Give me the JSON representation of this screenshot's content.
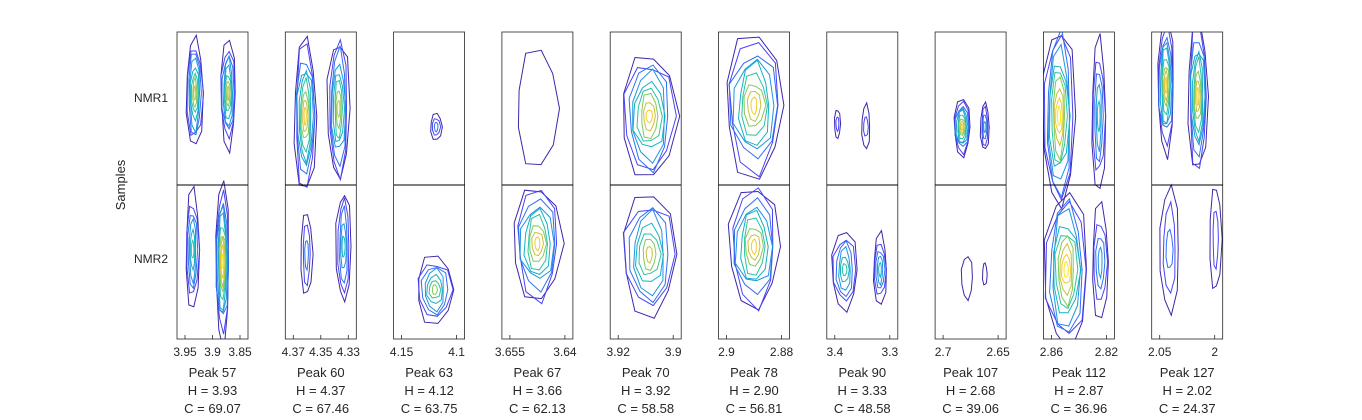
{
  "figure": {
    "ylabel": "Samples",
    "row_labels": [
      "NMR1",
      "NMR2"
    ],
    "colors": {
      "axis": "#262626",
      "contour_levels": [
        "#3e26a8",
        "#4743f8",
        "#2f6ff3",
        "#1f94e0",
        "#11b1c7",
        "#2cc29f",
        "#80c95c",
        "#c7c03a",
        "#f1cb2e",
        "#f9e91b"
      ]
    }
  },
  "chart_data": [
    {
      "type": "contour",
      "peak_label": "Peak 57",
      "h_label": "H = 3.93",
      "c_label": "C = 69.07",
      "xticks": [
        "3.95",
        "3.9",
        "3.85"
      ],
      "rows": [
        {
          "sample": "NMR1",
          "blobs": [
            [
              0.25,
              0.4,
              0.12,
              0.36,
              0.75
            ],
            [
              0.72,
              0.4,
              0.11,
              0.34,
              0.75
            ]
          ]
        },
        {
          "sample": "NMR2",
          "blobs": [
            [
              0.22,
              0.42,
              0.1,
              0.38,
              0.55
            ],
            [
              0.64,
              0.5,
              0.1,
              0.5,
              1.0
            ]
          ]
        }
      ]
    },
    {
      "type": "contour",
      "peak_label": "Peak 60",
      "h_label": "H = 4.37",
      "c_label": "C = 67.46",
      "xticks": [
        "4.37",
        "4.35",
        "4.33"
      ],
      "rows": [
        {
          "sample": "NMR1",
          "blobs": [
            [
              0.28,
              0.55,
              0.16,
              0.5,
              0.85
            ],
            [
              0.75,
              0.5,
              0.15,
              0.48,
              0.75
            ]
          ]
        },
        {
          "sample": "NMR2",
          "blobs": [
            [
              0.3,
              0.45,
              0.08,
              0.28,
              0.3
            ],
            [
              0.82,
              0.4,
              0.1,
              0.38,
              0.5
            ]
          ]
        }
      ]
    },
    {
      "type": "contour",
      "peak_label": "Peak 63",
      "h_label": "H = 4.12",
      "c_label": "C = 63.75",
      "xticks": [
        "4.15",
        "4.1"
      ],
      "rows": [
        {
          "sample": "NMR1",
          "blobs": [
            [
              0.6,
              0.62,
              0.08,
              0.09,
              0.25
            ]
          ]
        },
        {
          "sample": "NMR2",
          "blobs": [
            [
              0.58,
              0.68,
              0.26,
              0.22,
              0.72
            ]
          ]
        }
      ]
    },
    {
      "type": "contour",
      "peak_label": "Peak 67",
      "h_label": "H = 3.66",
      "c_label": "C = 62.13",
      "xticks": [
        "3.655",
        "3.64"
      ],
      "rows": [
        {
          "sample": "NMR1",
          "blobs": [
            [
              0.5,
              0.5,
              0.3,
              0.38,
              0.1
            ]
          ]
        },
        {
          "sample": "NMR2",
          "blobs": [
            [
              0.5,
              0.38,
              0.34,
              0.38,
              0.85
            ]
          ]
        }
      ]
    },
    {
      "type": "contour",
      "peak_label": "Peak 70",
      "h_label": "H = 3.92",
      "c_label": "C = 58.58",
      "xticks": [
        "3.92",
        "3.9"
      ],
      "rows": [
        {
          "sample": "NMR1",
          "blobs": [
            [
              0.55,
              0.55,
              0.38,
              0.42,
              0.85
            ]
          ]
        },
        {
          "sample": "NMR2",
          "blobs": [
            [
              0.55,
              0.45,
              0.38,
              0.4,
              0.8
            ]
          ]
        }
      ]
    },
    {
      "type": "contour",
      "peak_label": "Peak 78",
      "h_label": "H = 2.90",
      "c_label": "C = 56.81",
      "xticks": [
        "2.9",
        "2.88"
      ],
      "rows": [
        {
          "sample": "NMR1",
          "blobs": [
            [
              0.5,
              0.48,
              0.42,
              0.46,
              0.9
            ]
          ]
        },
        {
          "sample": "NMR2",
          "blobs": [
            [
              0.5,
              0.4,
              0.36,
              0.4,
              0.9
            ]
          ]
        }
      ]
    },
    {
      "type": "contour",
      "peak_label": "Peak 90",
      "h_label": "H = 3.33",
      "c_label": "C = 48.58",
      "xticks": [
        "3.4",
        "3.3"
      ],
      "rows": [
        {
          "sample": "NMR1",
          "blobs": [
            [
              0.15,
              0.6,
              0.04,
              0.1,
              0.15
            ],
            [
              0.55,
              0.62,
              0.06,
              0.14,
              0.15
            ]
          ]
        },
        {
          "sample": "NMR2",
          "blobs": [
            [
              0.25,
              0.55,
              0.18,
              0.26,
              0.6
            ],
            [
              0.75,
              0.55,
              0.1,
              0.22,
              0.5
            ]
          ]
        }
      ]
    },
    {
      "type": "contour",
      "peak_label": "Peak 107",
      "h_label": "H = 2.68",
      "c_label": "C = 39.06",
      "xticks": [
        "2.7",
        "2.65"
      ],
      "rows": [
        {
          "sample": "NMR1",
          "blobs": [
            [
              0.38,
              0.62,
              0.12,
              0.18,
              0.85
            ],
            [
              0.7,
              0.62,
              0.06,
              0.16,
              0.4
            ]
          ]
        },
        {
          "sample": "NMR2",
          "blobs": [
            [
              0.45,
              0.6,
              0.08,
              0.14,
              0.12
            ],
            [
              0.7,
              0.58,
              0.03,
              0.08,
              0.1
            ]
          ]
        }
      ]
    },
    {
      "type": "contour",
      "peak_label": "Peak 112",
      "h_label": "H = 2.87",
      "c_label": "C = 36.96",
      "xticks": [
        "2.86",
        "2.82"
      ],
      "rows": [
        {
          "sample": "NMR1",
          "blobs": [
            [
              0.22,
              0.55,
              0.22,
              0.62,
              1.0
            ],
            [
              0.78,
              0.55,
              0.1,
              0.5,
              0.5
            ]
          ]
        },
        {
          "sample": "NMR2",
          "blobs": [
            [
              0.32,
              0.55,
              0.3,
              0.52,
              0.95
            ],
            [
              0.8,
              0.5,
              0.12,
              0.36,
              0.4
            ]
          ]
        }
      ]
    },
    {
      "type": "contour",
      "peak_label": "Peak 127",
      "h_label": "H = 2.02",
      "c_label": "C = 24.37",
      "xticks": [
        "2.05",
        "2"
      ],
      "rows": [
        {
          "sample": "NMR1",
          "blobs": [
            [
              0.2,
              0.35,
              0.12,
              0.42,
              0.85
            ],
            [
              0.65,
              0.42,
              0.14,
              0.5,
              0.9
            ]
          ]
        },
        {
          "sample": "NMR2",
          "blobs": [
            [
              0.25,
              0.42,
              0.14,
              0.4,
              0.3
            ],
            [
              0.9,
              0.35,
              0.08,
              0.36,
              0.2
            ]
          ]
        }
      ]
    }
  ]
}
